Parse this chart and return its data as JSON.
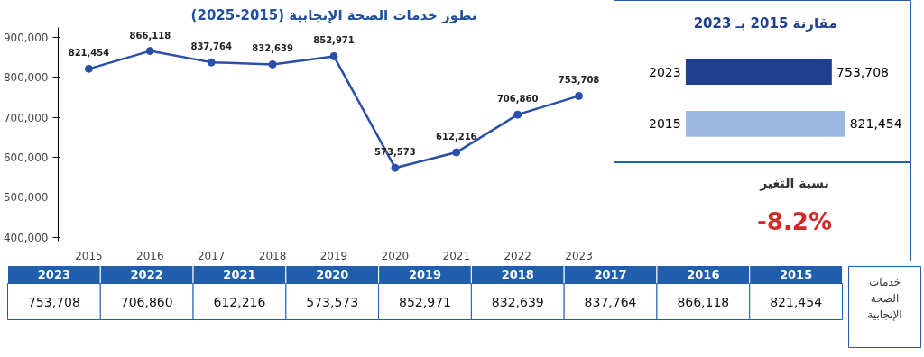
{
  "chart_data": [
    {
      "type": "line",
      "title": "تطور خدمات الصحة الإنجابية (2015-2025)",
      "categories": [
        "2015",
        "2016",
        "2017",
        "2018",
        "2019",
        "2020",
        "2021",
        "2022",
        "2023"
      ],
      "series": [
        {
          "color": "#2a4fa8",
          "values": [
            821454,
            866118,
            837764,
            832639,
            852971,
            573573,
            612216,
            706860,
            753708
          ],
          "value_labels": [
            "821,454",
            "866,118",
            "837,764",
            "832,639",
            "852,971",
            "573,573",
            "612,216",
            "706,860",
            "753,708"
          ]
        }
      ],
      "ylim": [
        390000,
        925000
      ],
      "yticks": [
        {
          "value": 400000,
          "label": "400,000"
        },
        {
          "value": 500000,
          "label": "500,000"
        },
        {
          "value": 600000,
          "label": "600,000"
        },
        {
          "value": 700000,
          "label": "700,000"
        },
        {
          "value": 800000,
          "label": "800,000"
        },
        {
          "value": 900000,
          "label": "900,000"
        }
      ],
      "marker": "circle",
      "line_style": "solid",
      "annotations": [
        "خدمات الصحة الإنجابية"
      ]
    },
    {
      "type": "bar",
      "orientation": "horizontal",
      "title": "مقارنة 2015 بـ 2023",
      "categories": [
        "2023",
        "2015"
      ],
      "values": [
        753708,
        821454
      ],
      "value_labels": [
        "753,708",
        "821,454"
      ],
      "colors": [
        "#1f3f8f",
        "#9db8e2"
      ],
      "annotations": [
        "نسبة التغير",
        "-8.2%"
      ]
    }
  ]
}
